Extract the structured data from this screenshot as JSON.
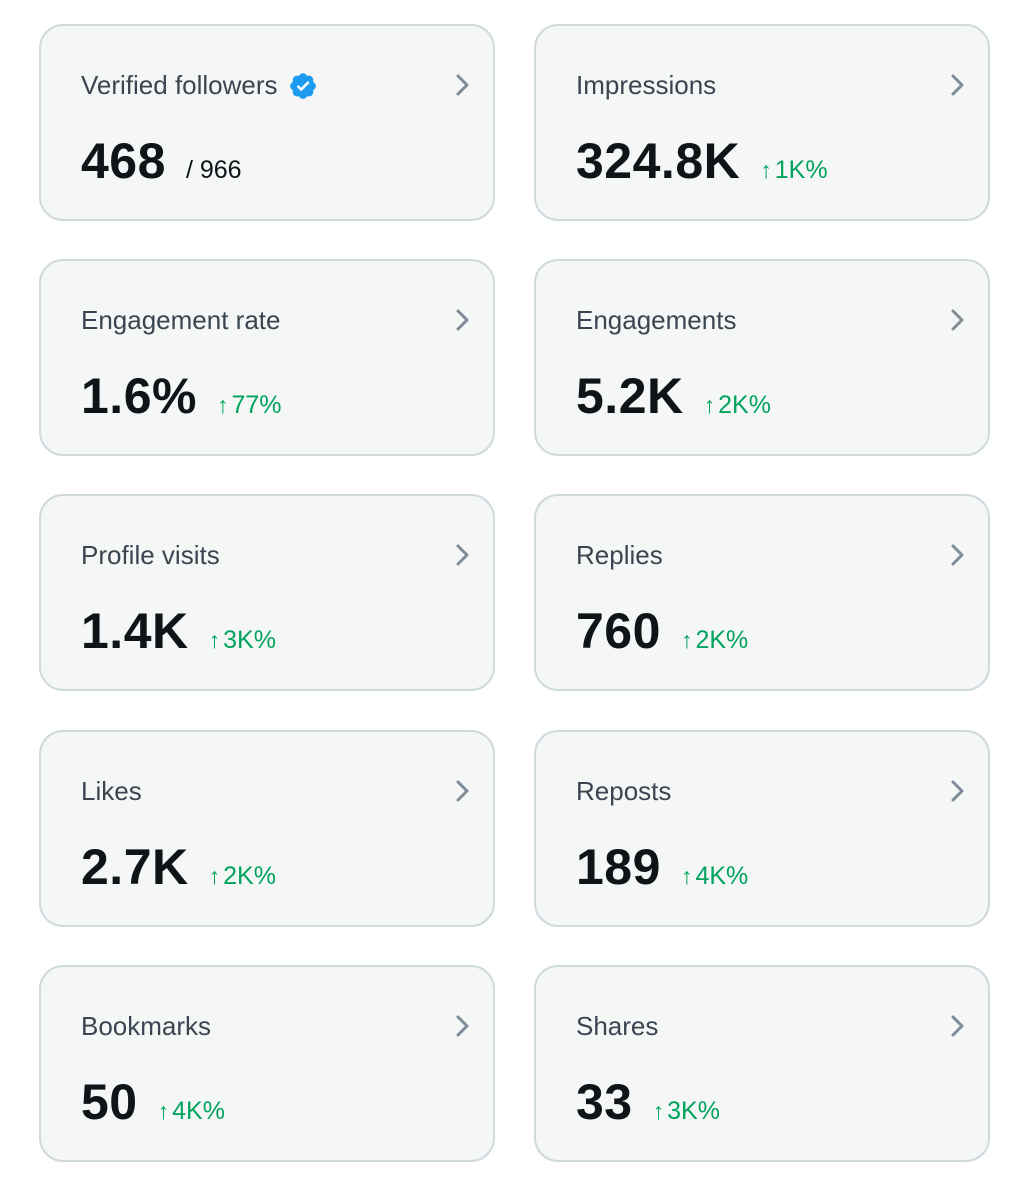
{
  "colors": {
    "card_bg": "#f5f7f7",
    "card_border": "#cfd9de",
    "title_text": "#3a4550",
    "value_text": "#0f1419",
    "delta_green": "#00a35c",
    "verified_blue": "#1d9bf0",
    "chevron": "#7e8c99"
  },
  "icons": {
    "verified": "verified-badge-icon",
    "chevron": "chevron-right-icon",
    "arrow": "arrow-up-icon"
  },
  "arrow_glyph": "↑",
  "cards": [
    {
      "title": "Verified followers",
      "value": "468",
      "sub": "/ 966"
    },
    {
      "title": "Impressions",
      "value": "324.8K",
      "delta": "1K%"
    },
    {
      "title": "Engagement rate",
      "value": "1.6%",
      "delta": "77%"
    },
    {
      "title": "Engagements",
      "value": "5.2K",
      "delta": "2K%"
    },
    {
      "title": "Profile visits",
      "value": "1.4K",
      "delta": "3K%"
    },
    {
      "title": "Replies",
      "value": "760",
      "delta": "2K%"
    },
    {
      "title": "Likes",
      "value": "2.7K",
      "delta": "2K%"
    },
    {
      "title": "Reposts",
      "value": "189",
      "delta": "4K%"
    },
    {
      "title": "Bookmarks",
      "value": "50",
      "delta": "4K%"
    },
    {
      "title": "Shares",
      "value": "33",
      "delta": "3K%"
    }
  ]
}
